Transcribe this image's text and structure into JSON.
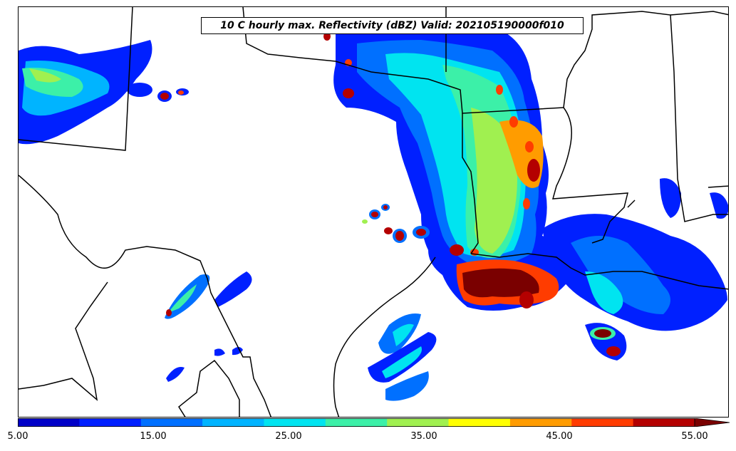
{
  "title": "10 C hourly max. Reflectivity (dBZ) Valid: 202105190000f010",
  "colorbar": {
    "tick_labels": [
      "5.00",
      "15.00",
      "25.00",
      "35.00",
      "45.00",
      "55.00"
    ],
    "levels": [
      5,
      10,
      15,
      20,
      25,
      30,
      35,
      40,
      45,
      50,
      55
    ],
    "colors": [
      "#0000c8",
      "#0020ff",
      "#0070ff",
      "#00b4ff",
      "#00e4f0",
      "#3cf0a8",
      "#a0f050",
      "#ffff00",
      "#ff9c00",
      "#ff3c00",
      "#b40000",
      "#7a0000"
    ],
    "extend": "max"
  },
  "map_colors": {
    "boundary": "#000000",
    "background": "#ffffff"
  }
}
